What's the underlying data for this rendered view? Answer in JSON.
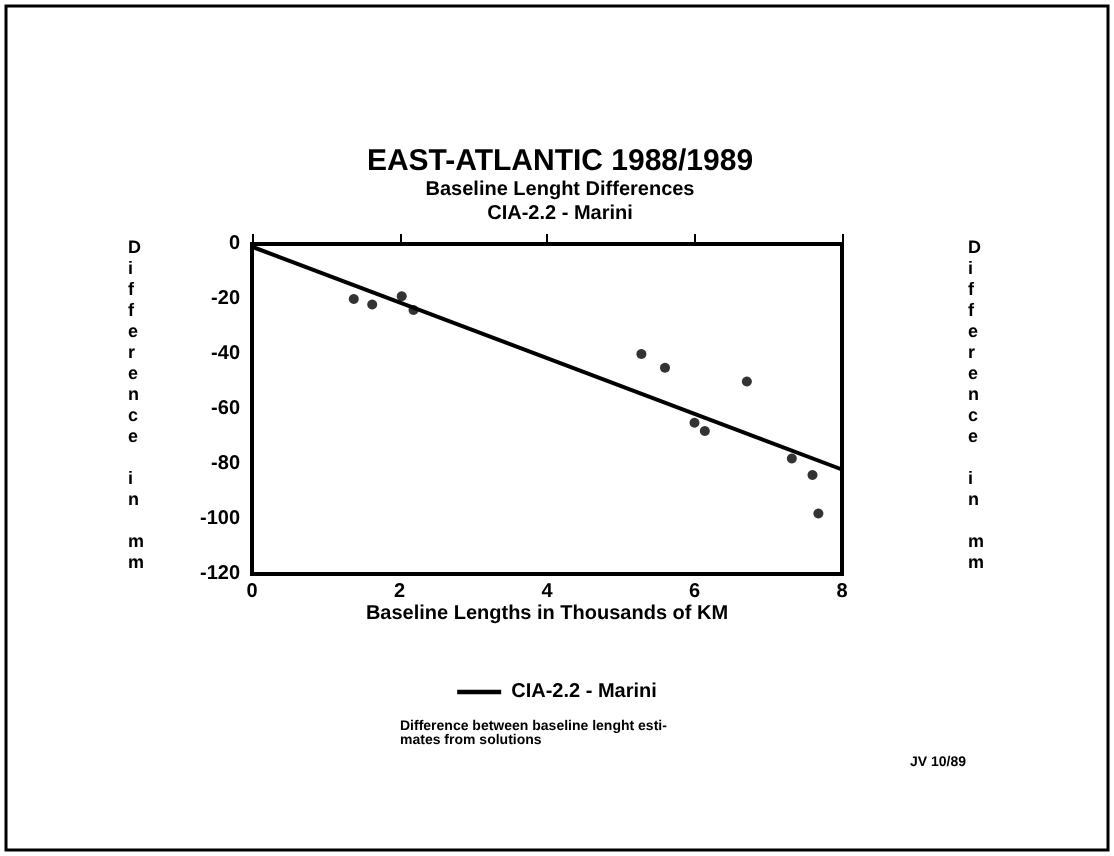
{
  "chart_data": {
    "type": "scatter",
    "title": "EAST-ATLANTIC 1988/1989",
    "subtitle": "Baseline Lenght Differences\nCIA-2.2 - Marini",
    "xlabel": "Baseline Lengths in Thousands of KM",
    "ylabel": "Difference in mm",
    "y2label": "Difference in mm",
    "annotations": [
      "Difference between baseline lenght esti-\nmates from solutions",
      "JV 10/89"
    ],
    "series": [
      {
        "marker": "circle",
        "color": "#000000",
        "x": [
          1.38,
          1.63,
          2.03,
          2.19,
          5.28,
          5.6,
          6.0,
          6.14,
          6.71,
          7.32,
          7.6,
          7.68
        ],
        "values": [
          -20,
          -22,
          -19,
          -24,
          -40,
          -45,
          -65,
          -68,
          -50,
          -78,
          -84,
          -98
        ]
      },
      {
        "type": "line",
        "name": "CIA-2.2 - Marini",
        "color": "#000000",
        "x": [
          0,
          8
        ],
        "values": [
          -1,
          -82
        ]
      }
    ],
    "xlim": [
      0,
      8
    ],
    "xticks": [
      0,
      2,
      4,
      6,
      8
    ],
    "ylim": [
      -120,
      0
    ],
    "yticks": [
      -120,
      -100,
      -80,
      -60,
      -40,
      -20,
      0
    ],
    "grid": false,
    "legend": "bottom"
  }
}
